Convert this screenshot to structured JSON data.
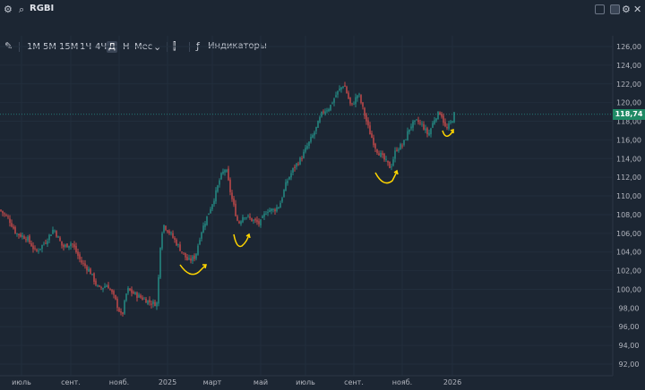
{
  "header": {
    "ticker": "RGBI"
  },
  "toolbar": {
    "timeframes": [
      "1М",
      "5М",
      "15М",
      "1Ч",
      "4Ч",
      "Д",
      "Н",
      "Мес"
    ],
    "active_timeframe": "Д",
    "indicators_label": "Индикаторы"
  },
  "chart_data": {
    "type": "candlestick",
    "y_ticks": [
      "126,00",
      "124,00",
      "122,00",
      "120,00",
      "118,00",
      "116,00",
      "114,00",
      "112,00",
      "110,00",
      "108,00",
      "106,00",
      "104,00",
      "102,00",
      "100,00",
      "98,00",
      "96,00",
      "94,00",
      "92,00"
    ],
    "x_ticks": [
      "июль",
      "сент.",
      "нояб.",
      "2025",
      "март",
      "май",
      "июль",
      "сент.",
      "нояб.",
      "2026"
    ],
    "ylim": [
      91,
      127
    ],
    "last_price": "118,74",
    "last_value": 118.74,
    "colors": {
      "up": "#26a69a",
      "down": "#ef5350",
      "annotation": "#ffd500"
    }
  }
}
